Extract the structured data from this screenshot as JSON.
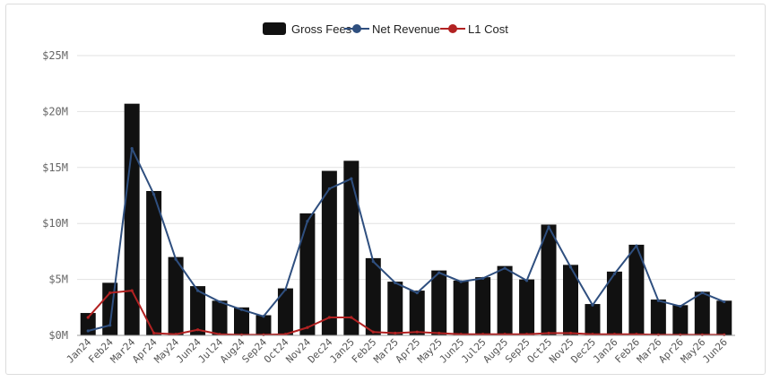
{
  "chart_data": {
    "type": "bar",
    "categories": [
      "Jan24",
      "Feb24",
      "Mar24",
      "Apr24",
      "May24",
      "Jun24",
      "Jul24",
      "Aug24",
      "Sep24",
      "Oct24",
      "Nov24",
      "Dec24",
      "Jan25",
      "Feb25",
      "Mar25",
      "Apr25",
      "May25",
      "Jun25",
      "Jul25",
      "Aug25",
      "Sep25",
      "Oct25",
      "Nov25",
      "Dec25",
      "Jan26",
      "Feb26",
      "Mar26",
      "Apr26",
      "May26",
      "Jun26"
    ],
    "series": [
      {
        "name": "Gross Fees",
        "type": "bar",
        "color": "#111111",
        "values": [
          2.0,
          4.7,
          20.7,
          12.9,
          7.0,
          4.4,
          3.1,
          2.5,
          1.8,
          4.2,
          10.9,
          14.7,
          15.6,
          6.9,
          4.8,
          4.0,
          5.8,
          4.9,
          5.2,
          6.2,
          5.0,
          9.9,
          6.3,
          2.8,
          5.7,
          8.1,
          3.2,
          2.7,
          3.9,
          3.1
        ]
      },
      {
        "name": "Net Revenue",
        "type": "line",
        "color": "#2f4f7f",
        "values": [
          0.4,
          0.9,
          16.7,
          12.6,
          6.8,
          4.0,
          3.0,
          2.3,
          1.7,
          4.1,
          10.2,
          13.1,
          14.0,
          6.6,
          4.7,
          3.8,
          5.6,
          4.8,
          5.1,
          6.0,
          4.9,
          9.7,
          6.1,
          2.7,
          5.5,
          8.0,
          3.1,
          2.6,
          3.8,
          3.0
        ]
      },
      {
        "name": "L1 Cost",
        "type": "line",
        "color": "#b22222",
        "values": [
          1.6,
          3.8,
          4.0,
          0.2,
          0.1,
          0.5,
          0.1,
          0.05,
          0.05,
          0.1,
          0.7,
          1.6,
          1.6,
          0.3,
          0.2,
          0.3,
          0.2,
          0.1,
          0.1,
          0.1,
          0.1,
          0.2,
          0.2,
          0.1,
          0.1,
          0.1,
          0.05,
          0.05,
          0.05,
          0.05
        ]
      }
    ],
    "yticks": [
      "$0M",
      "$5M",
      "$10M",
      "$15M",
      "$20M",
      "$25M"
    ],
    "ylim": [
      0,
      25
    ],
    "grid": true,
    "legend_position": "top-center",
    "xlabel": "",
    "ylabel": ""
  }
}
